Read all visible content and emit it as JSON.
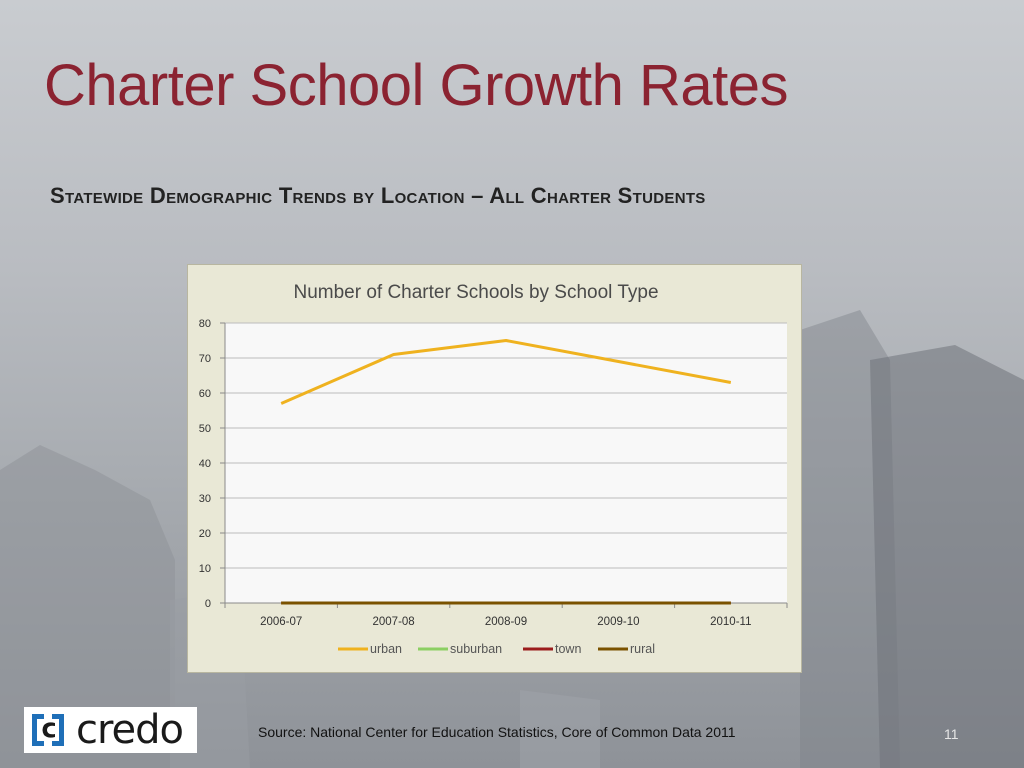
{
  "slide": {
    "title": "Charter School Growth Rates",
    "subtitle": "Statewide Demographic Trends by Location – All Charter Students",
    "source": "Source:  National Center for Education Statistics, Core of Common Data 2011",
    "page_number": "11",
    "logo_text": "credo"
  },
  "colors": {
    "title": "#8b2331",
    "chart_background": "#e9e8d6",
    "plot_background": "#f8f8f8",
    "logo_blue": "#1f6fb8"
  },
  "chart_data": {
    "type": "line",
    "title": "Number of Charter Schools by School Type",
    "categories": [
      "2006-07",
      "2007-08",
      "2008-09",
      "2009-10",
      "2010-11"
    ],
    "ylim": [
      0,
      80
    ],
    "yticks": [
      0,
      10,
      20,
      30,
      40,
      50,
      60,
      70,
      80
    ],
    "grid": true,
    "legend_position": "bottom",
    "series": [
      {
        "name": "urban",
        "color": "#efb21f",
        "values": [
          57,
          71,
          75,
          69,
          63
        ]
      },
      {
        "name": "suburban",
        "color": "#8ccf63",
        "values": [
          0,
          0,
          0,
          0,
          0
        ]
      },
      {
        "name": "town",
        "color": "#9b1c1c",
        "values": [
          0,
          0,
          0,
          0,
          0
        ]
      },
      {
        "name": "rural",
        "color": "#7a5200",
        "values": [
          0,
          0,
          0,
          0,
          0
        ]
      }
    ]
  }
}
